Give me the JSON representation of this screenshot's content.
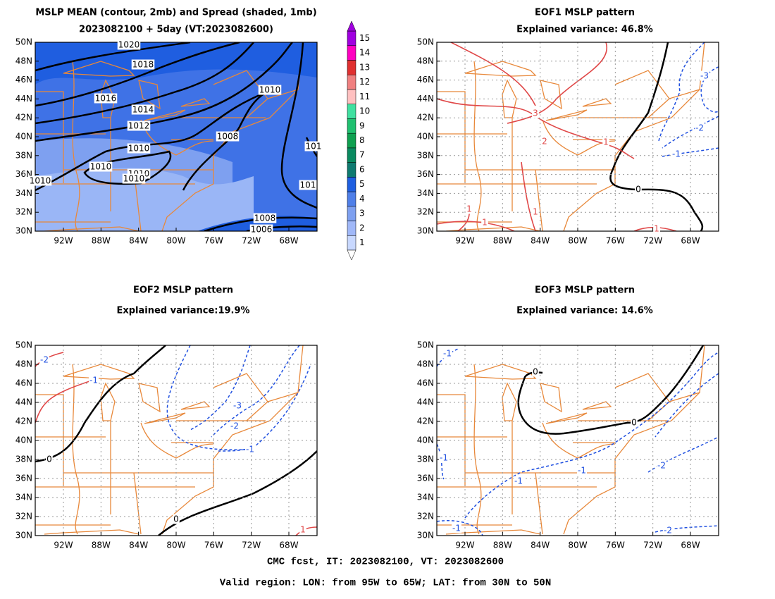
{
  "panels": [
    {
      "title": [
        "MSLP MEAN (contour, 2mb) and Spread (shaded, 1mb)",
        "2023082100 + 5day (VT:2023082600)"
      ],
      "contour_labels": [
        "1020",
        "1018",
        "1016",
        "1014",
        "1012",
        "1010",
        "1008",
        "1010",
        "1010",
        "1010",
        "1010",
        "1008",
        "1006",
        "1010",
        "101",
        "101"
      ]
    },
    {
      "title": [
        "EOF1 MSLP pattern",
        "Explained variance: 46.8%"
      ],
      "contour_labels": [
        "3",
        "2",
        "1",
        "1",
        "1",
        "1",
        "1",
        "0",
        "-3",
        "-2",
        "-1"
      ]
    },
    {
      "title": [
        "EOF2 MSLP pattern",
        "Explained variance:19.9%"
      ],
      "contour_labels": [
        "-2",
        "-1",
        "0",
        "0",
        "-3",
        "-2",
        "-1",
        "1"
      ]
    },
    {
      "title": [
        "EOF3 MSLP pattern",
        "Explained variance: 14.6%"
      ],
      "contour_labels": [
        "-1",
        "0",
        "0",
        "-1",
        "-1",
        "-1",
        "-1",
        "-2",
        "-2"
      ]
    }
  ],
  "lat_labels": [
    "30N",
    "32N",
    "34N",
    "36N",
    "38N",
    "40N",
    "42N",
    "44N",
    "46N",
    "48N",
    "50N"
  ],
  "lon_labels": [
    "92W",
    "88W",
    "84W",
    "80W",
    "76W",
    "72W",
    "68W"
  ],
  "colorbar": {
    "labels": [
      "1",
      "2",
      "3",
      "4",
      "5",
      "6",
      "7",
      "8",
      "9",
      "10",
      "11",
      "12",
      "13",
      "14",
      "15"
    ],
    "colors": [
      "#c8d8ff",
      "#a0b8f8",
      "#7ea0f0",
      "#4f7fe8",
      "#1f5fe0",
      "#0f7a70",
      "#0a8a60",
      "#0fa050",
      "#20c070",
      "#40e0a0",
      "#ffc0c0",
      "#f08080",
      "#e03030",
      "#ff00c0",
      "#a000e0"
    ]
  },
  "footer": [
    "CMC fcst, IT: 2023082100, VT: 2023082600",
    "Valid region: LON: from 95W to 65W; LAT: from 30N to 50N"
  ]
}
